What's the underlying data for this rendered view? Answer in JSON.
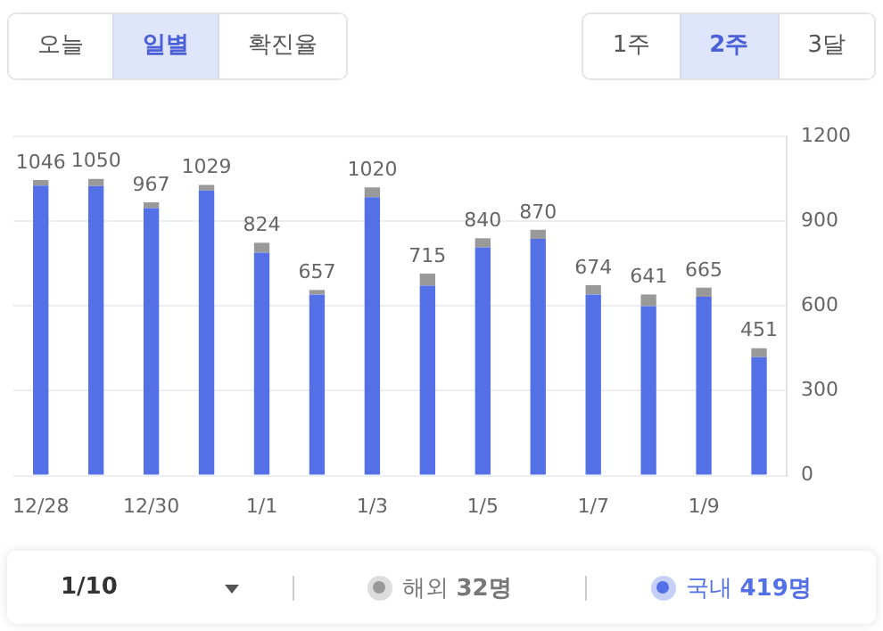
{
  "chart_data": {
    "type": "bar",
    "stacked": true,
    "categories": [
      "12/28",
      null,
      "12/30",
      null,
      "1/1",
      null,
      "1/3",
      null,
      "1/5",
      null,
      "1/7",
      null,
      "1/9",
      null
    ],
    "series": [
      {
        "name": "국내",
        "color": "#5470e6",
        "values": [
          1026,
          1025,
          947,
          1009,
          789,
          641,
          985,
          672,
          808,
          838,
          641,
          600,
          633,
          419
        ]
      },
      {
        "name": "해외",
        "color": "#999999",
        "values": [
          20,
          25,
          20,
          20,
          35,
          16,
          35,
          43,
          32,
          32,
          33,
          41,
          32,
          32
        ]
      }
    ],
    "totals": [
      "1046",
      "1050",
      "967",
      "1029",
      "824",
      "657",
      "1020",
      "715",
      "840",
      "870",
      "674",
      "641",
      "665",
      "451"
    ],
    "ylim": [
      0,
      1200
    ],
    "yticks": [
      0,
      300,
      600,
      900,
      1200
    ],
    "grid": "y",
    "legend": "bottom",
    "annotations": [
      "오늘",
      "일별",
      "확진율",
      "1주",
      "2주",
      "3달",
      "1/10",
      "32명",
      "419명"
    ]
  }
}
